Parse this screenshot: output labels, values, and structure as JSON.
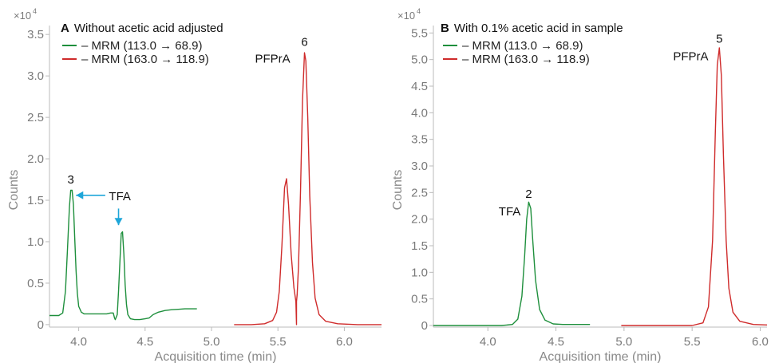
{
  "chart_data": [
    {
      "type": "line",
      "panel_letter": "A",
      "title": "Without acetic acid adjusted",
      "xlabel": "Acquisition time (min)",
      "ylabel": "Counts",
      "y_multiplier": "×10",
      "y_multiplier_exp": "4",
      "xlim": [
        3.78,
        6.28
      ],
      "ylim": [
        -0.03,
        3.55
      ],
      "xticks": [
        4.0,
        4.5,
        5.0,
        5.5,
        6.0
      ],
      "xtick_labels": [
        "4.0",
        "4.5",
        "5.0",
        "5.5",
        "6.0"
      ],
      "yticks": [
        0,
        0.5,
        1.0,
        1.5,
        2.0,
        2.5,
        3.0,
        3.5
      ],
      "ytick_labels": [
        "0",
        "0.5",
        "1.0",
        "1.5",
        "2.0",
        "2.5",
        "3.0",
        "3.5"
      ],
      "grid": false,
      "legend_position": "top-left",
      "series": [
        {
          "name": "– MRM (113.0 → 68.9)",
          "color": "#1e8f3c",
          "x": [
            3.78,
            3.85,
            3.88,
            3.9,
            3.915,
            3.93,
            3.94,
            3.95,
            3.96,
            3.97,
            3.98,
            3.99,
            4.0,
            4.02,
            4.04,
            4.07,
            4.1,
            4.13,
            4.15,
            4.18,
            4.21,
            4.24,
            4.26,
            4.27,
            4.275,
            4.29,
            4.3,
            4.31,
            4.32,
            4.33,
            4.34,
            4.35,
            4.36,
            4.37,
            4.39,
            4.42,
            4.46,
            4.5,
            4.53,
            4.56,
            4.6,
            4.65,
            4.7,
            4.75,
            4.8,
            4.85,
            4.89
          ],
          "y": [
            0.11,
            0.11,
            0.14,
            0.4,
            0.9,
            1.42,
            1.62,
            1.62,
            1.45,
            1.05,
            0.65,
            0.38,
            0.22,
            0.15,
            0.13,
            0.13,
            0.13,
            0.13,
            0.13,
            0.13,
            0.13,
            0.14,
            0.14,
            0.08,
            0.06,
            0.12,
            0.4,
            0.75,
            1.1,
            1.12,
            0.85,
            0.48,
            0.24,
            0.12,
            0.07,
            0.06,
            0.06,
            0.07,
            0.08,
            0.12,
            0.15,
            0.17,
            0.18,
            0.185,
            0.19,
            0.19,
            0.19
          ]
        },
        {
          "name": "– MRM (163.0 → 118.9)",
          "color": "#cf2b2b",
          "x": [
            5.17,
            5.3,
            5.4,
            5.46,
            5.49,
            5.51,
            5.53,
            5.55,
            5.565,
            5.58,
            5.6,
            5.62,
            5.635,
            5.64,
            5.64,
            5.645,
            5.655,
            5.67,
            5.685,
            5.7,
            5.71,
            5.725,
            5.74,
            5.76,
            5.78,
            5.81,
            5.86,
            5.95,
            6.1,
            6.28
          ],
          "y": [
            0.0,
            0.0,
            0.01,
            0.05,
            0.15,
            0.4,
            0.95,
            1.65,
            1.76,
            1.45,
            0.85,
            0.45,
            0.28,
            0.0,
            0.28,
            0.36,
            0.7,
            1.6,
            2.7,
            3.28,
            3.18,
            2.5,
            1.55,
            0.75,
            0.32,
            0.12,
            0.04,
            0.01,
            0.0,
            0.0
          ]
        }
      ],
      "annotations": [
        {
          "text": "3",
          "x": 3.94,
          "y": 1.7
        },
        {
          "text": "6",
          "x": 5.7,
          "y": 3.36
        },
        {
          "text": "PFPrA",
          "x": 5.46,
          "y": 3.16
        },
        {
          "text": "TFA",
          "x": 4.31,
          "y": 1.5
        }
      ],
      "arrows": [
        {
          "color": "#1ea6d9",
          "from": [
            4.2,
            1.56
          ],
          "to": [
            3.98,
            1.56
          ]
        },
        {
          "color": "#1ea6d9",
          "from": [
            4.3,
            1.4
          ],
          "to": [
            4.3,
            1.2
          ]
        }
      ]
    },
    {
      "type": "line",
      "panel_letter": "B",
      "title": "With 0.1% acetic acid in sample",
      "xlabel": "Acquisition time (min)",
      "ylabel": "Counts",
      "y_multiplier": "×10",
      "y_multiplier_exp": "4",
      "xlim": [
        3.6,
        6.05
      ],
      "ylim": [
        -0.03,
        5.55
      ],
      "xticks": [
        4.0,
        4.5,
        5.0,
        5.5,
        6.0
      ],
      "xtick_labels": [
        "4.0",
        "4.5",
        "5.0",
        "5.5",
        "6.0"
      ],
      "yticks": [
        0,
        0.5,
        1.0,
        1.5,
        2.0,
        2.5,
        3.0,
        3.5,
        4.0,
        4.5,
        5.0,
        5.5
      ],
      "ytick_labels": [
        "0",
        "0.5",
        "1.0",
        "1.5",
        "2.0",
        "2.5",
        "3.0",
        "3.5",
        "4.0",
        "4.5",
        "5.0",
        "5.5"
      ],
      "grid": false,
      "legend_position": "top-left",
      "series": [
        {
          "name": "– MRM (113.0 → 68.9)",
          "color": "#1e8f3c",
          "x": [
            3.6,
            3.9,
            4.1,
            4.18,
            4.22,
            4.25,
            4.27,
            4.285,
            4.3,
            4.315,
            4.33,
            4.35,
            4.38,
            4.42,
            4.48,
            4.55,
            4.65,
            4.75
          ],
          "y": [
            0.0,
            0.0,
            0.0,
            0.02,
            0.12,
            0.55,
            1.3,
            2.0,
            2.32,
            2.2,
            1.6,
            0.85,
            0.3,
            0.1,
            0.03,
            0.02,
            0.02,
            0.02
          ]
        },
        {
          "name": "– MRM (163.0 → 118.9)",
          "color": "#cf2b2b",
          "x": [
            4.98,
            5.3,
            5.5,
            5.58,
            5.62,
            5.65,
            5.67,
            5.685,
            5.7,
            5.715,
            5.73,
            5.75,
            5.77,
            5.8,
            5.85,
            5.95,
            6.05
          ],
          "y": [
            0.0,
            0.0,
            0.0,
            0.05,
            0.35,
            1.6,
            3.6,
            4.9,
            5.22,
            4.7,
            3.2,
            1.6,
            0.7,
            0.25,
            0.08,
            0.02,
            0.01
          ]
        }
      ],
      "annotations": [
        {
          "text": "2",
          "x": 4.3,
          "y": 2.4
        },
        {
          "text": "TFA",
          "x": 4.16,
          "y": 2.07
        },
        {
          "text": "5",
          "x": 5.7,
          "y": 5.32
        },
        {
          "text": "PFPrA",
          "x": 5.49,
          "y": 4.99
        }
      ],
      "arrows": []
    }
  ]
}
